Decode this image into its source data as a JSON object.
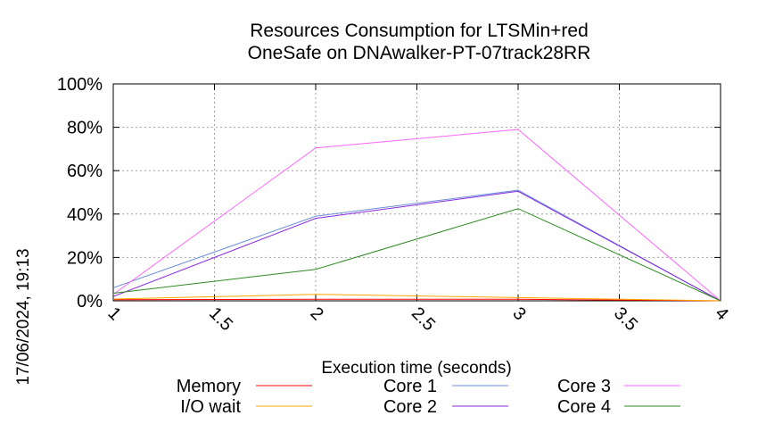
{
  "chart_data": {
    "type": "line",
    "title_lines": [
      "Resources Consumption for LTSMin+red",
      "OneSafe on DNAwalker-PT-07track28RR"
    ],
    "xlabel": "Execution time (seconds)",
    "ylabel": "",
    "side_label": "17/06/2024, 19:13",
    "xlim": [
      1,
      4
    ],
    "ylim": [
      0,
      100
    ],
    "x_ticks": [
      1,
      1.5,
      2,
      2.5,
      3,
      3.5,
      4
    ],
    "x_tick_labels": [
      "1",
      "1.5",
      "2",
      "2.5",
      "3",
      "3.5",
      "4"
    ],
    "y_ticks": [
      0,
      20,
      40,
      60,
      80,
      100
    ],
    "y_tick_labels": [
      "0%",
      "20%",
      "40%",
      "60%",
      "80%",
      "100%"
    ],
    "grid": true,
    "legend_position": "bottom",
    "series": [
      {
        "name": "Memory",
        "color": "#ff0000",
        "x": [
          1,
          2,
          3,
          4
        ],
        "y": [
          0.5,
          0.7,
          0.7,
          0
        ]
      },
      {
        "name": "I/O wait",
        "color": "#ffa500",
        "x": [
          1,
          2,
          3,
          4
        ],
        "y": [
          0.8,
          3,
          1.5,
          0
        ]
      },
      {
        "name": "Core 1",
        "color": "#6a8fd8",
        "x": [
          1,
          2,
          3,
          4
        ],
        "y": [
          6,
          39,
          51,
          0
        ]
      },
      {
        "name": "Core 2",
        "color": "#8a2be2",
        "x": [
          1,
          2,
          3,
          4
        ],
        "y": [
          2,
          38,
          50.5,
          0
        ]
      },
      {
        "name": "Core 3",
        "color": "#ff66ff",
        "x": [
          1,
          2,
          3,
          4
        ],
        "y": [
          3,
          70.5,
          79,
          0
        ]
      },
      {
        "name": "Core 4",
        "color": "#2e8b22",
        "x": [
          1,
          2,
          3,
          4
        ],
        "y": [
          3.5,
          14.5,
          42.5,
          0
        ]
      }
    ]
  }
}
